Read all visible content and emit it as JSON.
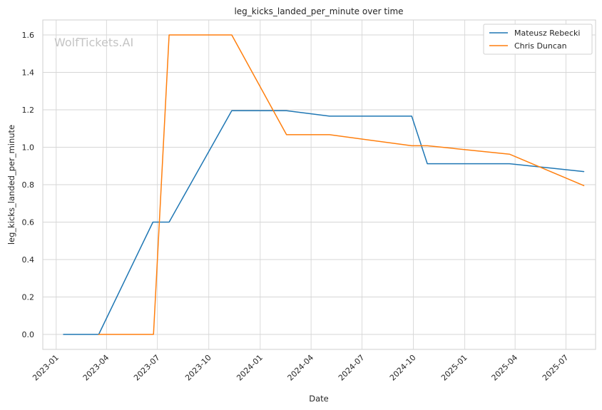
{
  "chart_data": {
    "type": "line",
    "title": "leg_kicks_landed_per_minute over time",
    "xlabel": "Date",
    "ylabel": "leg_kicks_landed_per_minute",
    "watermark": "WolfTickets.AI",
    "x_ticks": [
      "2023-01",
      "2023-04",
      "2023-07",
      "2023-10",
      "2024-01",
      "2024-04",
      "2024-07",
      "2024-10",
      "2025-01",
      "2025-04",
      "2025-07"
    ],
    "y_ticks": [
      "0.0",
      "0.2",
      "0.4",
      "0.6",
      "0.8",
      "1.0",
      "1.2",
      "1.4",
      "1.6"
    ],
    "ylim": [
      -0.08,
      1.68
    ],
    "xlim": [
      "2022-12-08",
      "2025-08-23"
    ],
    "grid": true,
    "legend_position": "top-right",
    "series": [
      {
        "name": "Mateusz Rebecki",
        "color": "#1f77b4",
        "points": [
          [
            "2023-01-14",
            0.0
          ],
          [
            "2023-03-18",
            0.0
          ],
          [
            "2023-06-23",
            0.6
          ],
          [
            "2023-07-22",
            0.6
          ],
          [
            "2023-11-11",
            1.195
          ],
          [
            "2024-02-17",
            1.195
          ],
          [
            "2024-05-04",
            1.166
          ],
          [
            "2024-09-28",
            1.166
          ],
          [
            "2024-10-26",
            0.912
          ],
          [
            "2025-03-22",
            0.912
          ],
          [
            "2025-08-02",
            0.87
          ]
        ]
      },
      {
        "name": "Chris Duncan",
        "color": "#ff7f0e",
        "points": [
          [
            "2023-03-18",
            0.0
          ],
          [
            "2023-06-24",
            0.0
          ],
          [
            "2023-07-22",
            1.6
          ],
          [
            "2023-11-11",
            1.6
          ],
          [
            "2024-02-17",
            1.067
          ],
          [
            "2024-05-04",
            1.067
          ],
          [
            "2024-09-28",
            1.008
          ],
          [
            "2024-10-26",
            1.008
          ],
          [
            "2025-03-22",
            0.963
          ],
          [
            "2025-08-02",
            0.795
          ]
        ]
      }
    ]
  }
}
